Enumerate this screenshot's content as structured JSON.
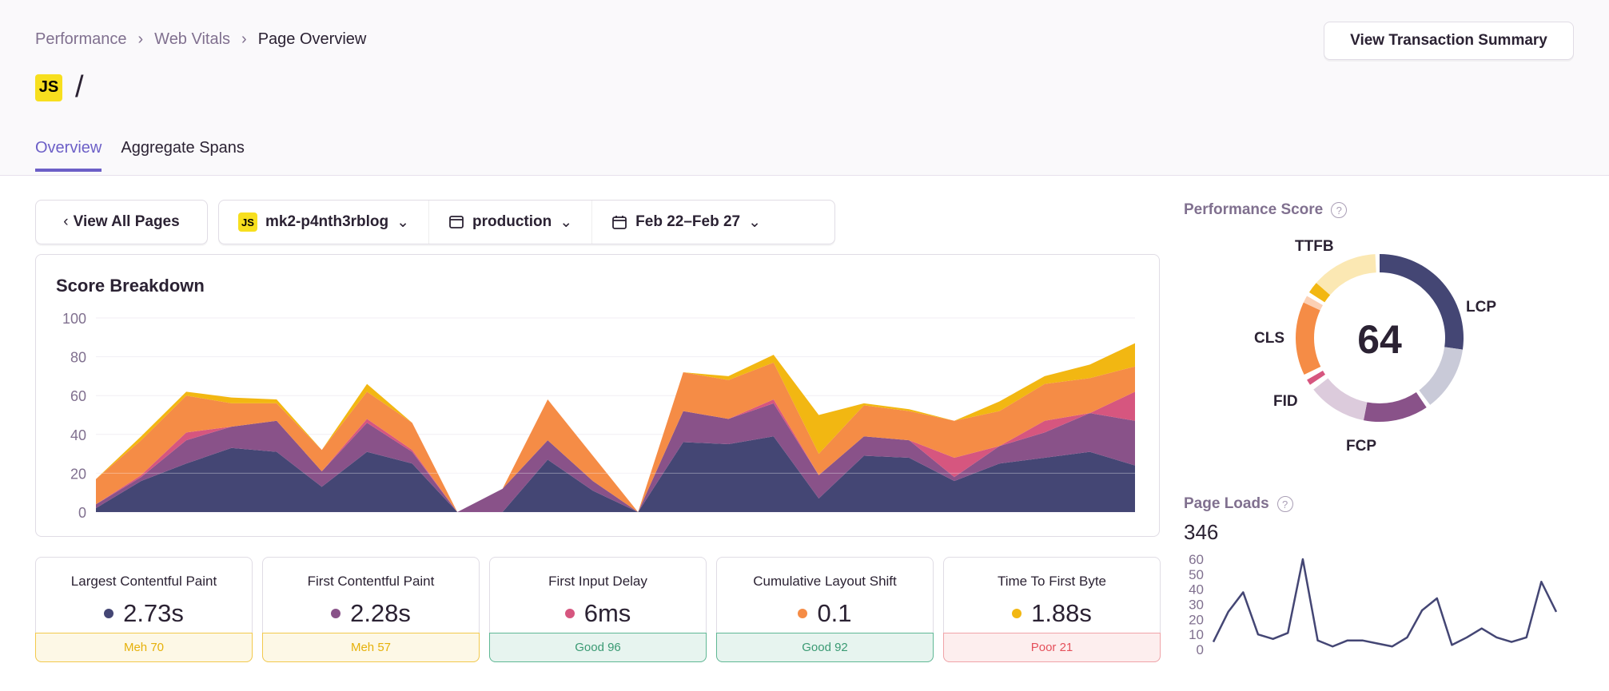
{
  "breadcrumb": [
    "Performance",
    "Web Vitals",
    "Page Overview"
  ],
  "title": {
    "badge": "JS",
    "text": "/"
  },
  "tabs": [
    {
      "label": "Overview",
      "active": true
    },
    {
      "label": "Aggregate Spans",
      "active": false
    }
  ],
  "actions": {
    "view_transaction_summary": "View Transaction Summary",
    "view_all_pages": "View All Pages"
  },
  "filters": {
    "project_badge": "JS",
    "project": "mk2-p4nth3rblog",
    "environment": "production",
    "date_range": "Feb 22–Feb 27"
  },
  "score_breakdown": {
    "title": "Score Breakdown"
  },
  "cards": [
    {
      "label": "Largest Contentful Paint",
      "value": "2.73s",
      "status": "Meh 70",
      "color": "#444674",
      "kind": "meh"
    },
    {
      "label": "First Contentful Paint",
      "value": "2.28s",
      "status": "Meh 57",
      "color": "#895289",
      "kind": "meh"
    },
    {
      "label": "First Input Delay",
      "value": "6ms",
      "status": "Good 96",
      "color": "#d6567f",
      "kind": "good"
    },
    {
      "label": "Cumulative Layout Shift",
      "value": "0.1",
      "status": "Good 92",
      "color": "#f58c46",
      "kind": "good"
    },
    {
      "label": "Time To First Byte",
      "value": "1.88s",
      "status": "Poor 21",
      "color": "#f2b712",
      "kind": "poor"
    }
  ],
  "performance_score": {
    "title": "Performance Score",
    "help_icon": "question-circle-icon",
    "score": "64",
    "labels": {
      "lcp": "LCP",
      "fcp": "FCP",
      "fid": "FID",
      "cls": "CLS",
      "ttfb": "TTFB"
    }
  },
  "page_loads": {
    "title": "Page Loads",
    "help_icon": "question-circle-icon",
    "total": "346"
  },
  "chart_data": [
    {
      "type": "area",
      "stacked": true,
      "title": "Score Breakdown",
      "ylim": [
        0,
        100
      ],
      "yticks": [
        0,
        20,
        40,
        60,
        80,
        100
      ],
      "grid": true,
      "series": [
        {
          "key": "lcp",
          "color": "#444674",
          "values": [
            2,
            16,
            25,
            33,
            31,
            13,
            31,
            25,
            0,
            0,
            27,
            11,
            0,
            36,
            35,
            39,
            7,
            29,
            28,
            16,
            25,
            28,
            31,
            24
          ]
        },
        {
          "key": "fcp",
          "color": "#895289",
          "values": [
            2,
            2,
            12,
            11,
            16,
            8,
            15,
            6,
            0,
            12,
            10,
            5,
            0,
            16,
            13,
            17,
            12,
            10,
            9,
            2,
            9,
            13,
            20,
            23
          ]
        },
        {
          "key": "fid",
          "color": "#d6567f",
          "values": [
            0,
            1,
            4,
            0,
            0,
            0,
            2,
            1,
            0,
            0,
            0,
            0,
            0,
            0,
            0,
            2,
            0,
            0,
            0,
            10,
            0,
            6,
            0,
            15
          ]
        },
        {
          "key": "cls",
          "color": "#f58c46",
          "values": [
            13,
            18,
            19,
            12,
            9,
            11,
            14,
            14,
            0,
            0,
            21,
            13,
            0,
            20,
            20,
            19,
            11,
            16,
            15,
            19,
            18,
            19,
            18,
            13
          ]
        },
        {
          "key": "ttfb",
          "color": "#f2b712",
          "values": [
            0,
            2,
            2,
            3,
            2,
            0,
            4,
            0,
            0,
            0,
            0,
            0,
            0,
            0,
            2,
            4,
            20,
            1,
            1,
            0,
            5,
            4,
            7,
            12
          ]
        }
      ]
    },
    {
      "type": "line",
      "ylim": [
        0,
        60
      ],
      "yticks": [
        0,
        10,
        20,
        30,
        40,
        50,
        60
      ],
      "color": "#444674",
      "values": [
        5,
        25,
        38,
        10,
        7,
        11,
        60,
        6,
        2,
        6,
        6,
        4,
        2,
        8,
        26,
        34,
        3,
        8,
        14,
        8,
        5,
        8,
        45,
        25
      ]
    },
    {
      "type": "pie",
      "variant": "donut",
      "total_score": 64,
      "segments": [
        {
          "key": "lcp",
          "color": "#444674",
          "from_deg": 0,
          "to_deg": 98
        },
        {
          "key": "lcp_remaining",
          "color": "#c9cad8",
          "from_deg": 98,
          "to_deg": 143
        },
        {
          "key": "fcp",
          "color": "#895289",
          "from_deg": 146,
          "to_deg": 191
        },
        {
          "key": "fcp_remaining",
          "color": "#dccbdc",
          "from_deg": 191,
          "to_deg": 232
        },
        {
          "key": "fid",
          "color": "#d6567f",
          "from_deg": 236,
          "to_deg": 240
        },
        {
          "key": "cls",
          "color": "#f58c46",
          "from_deg": 244,
          "to_deg": 295
        },
        {
          "key": "cls_remaining",
          "color": "#fcd0b4",
          "from_deg": 295,
          "to_deg": 300
        },
        {
          "key": "ttfb",
          "color": "#f2b712",
          "from_deg": 303,
          "to_deg": 311
        },
        {
          "key": "ttfb_remaining",
          "color": "#fbe8b3",
          "from_deg": 311,
          "to_deg": 357
        }
      ]
    }
  ]
}
